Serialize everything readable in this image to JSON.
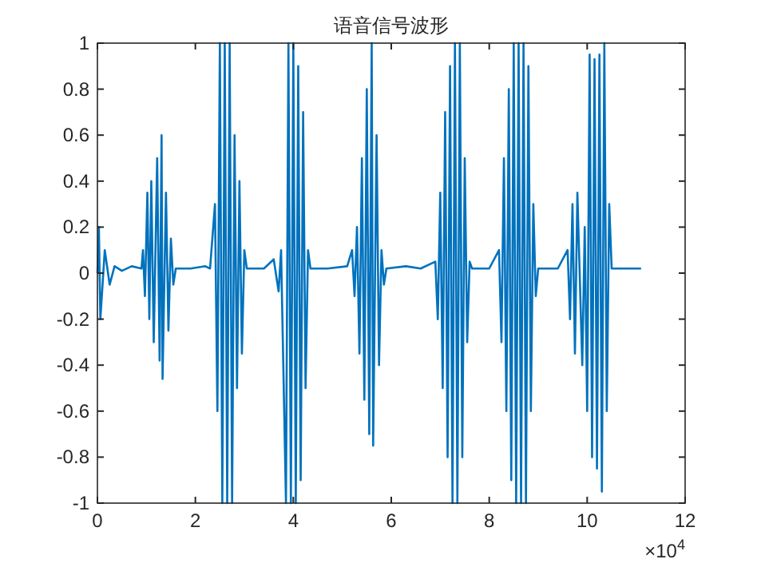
{
  "chart_data": {
    "type": "line",
    "title": "语音信号波形",
    "x": [
      0,
      0.03,
      0.06,
      0.15,
      0.25,
      0.35,
      0.5,
      0.7,
      0.9,
      0.93,
      0.97,
      1.02,
      1.06,
      1.1,
      1.15,
      1.22,
      1.27,
      1.31,
      1.33,
      1.4,
      1.45,
      1.5,
      1.55,
      1.6,
      1.9,
      2.2,
      2.3,
      2.4,
      2.45,
      2.5,
      2.55,
      2.6,
      2.65,
      2.7,
      2.75,
      2.8,
      2.85,
      2.9,
      2.95,
      3,
      3.05,
      3.4,
      3.6,
      3.7,
      3.75,
      3.85,
      3.9,
      3.95,
      4,
      4.05,
      4.1,
      4.15,
      4.2,
      4.25,
      4.3,
      4.35,
      4.7,
      5.1,
      5.2,
      5.25,
      5.3,
      5.35,
      5.4,
      5.45,
      5.5,
      5.55,
      5.6,
      5.63,
      5.7,
      5.75,
      5.8,
      5.85,
      5.9,
      6.3,
      6.6,
      6.9,
      6.95,
      7,
      7.05,
      7.1,
      7.15,
      7.2,
      7.25,
      7.3,
      7.35,
      7.4,
      7.45,
      7.5,
      7.55,
      7.6,
      7.65,
      8,
      8.2,
      8.25,
      8.3,
      8.35,
      8.4,
      8.45,
      8.5,
      8.55,
      8.6,
      8.65,
      8.7,
      8.75,
      8.8,
      8.85,
      8.9,
      8.95,
      9,
      9.4,
      9.6,
      9.65,
      9.7,
      9.75,
      9.8,
      9.9,
      9.95,
      10,
      10.05,
      10.1,
      10.15,
      10.2,
      10.25,
      10.3,
      10.35,
      10.4,
      10.45,
      10.5,
      10.8,
      11.1
    ],
    "series": [
      {
        "color": "#0072bd",
        "values": [
          0,
          0.2,
          -0.2,
          0.1,
          -0.05,
          0.03,
          0.01,
          0.03,
          0.02,
          0.1,
          -0.1,
          0.35,
          -0.2,
          0.4,
          -0.3,
          0.5,
          -0.38,
          0.6,
          -0.46,
          0.35,
          -0.25,
          0.15,
          -0.05,
          0.02,
          0.02,
          0.03,
          0.02,
          0.3,
          -0.6,
          1,
          -1,
          1,
          -1,
          1,
          -1,
          0.6,
          -0.5,
          0.4,
          -0.35,
          0.1,
          0.02,
          0.02,
          0.06,
          -0.08,
          0.1,
          -1,
          1,
          -1,
          1,
          -1,
          0.9,
          -0.9,
          0.7,
          -0.5,
          0.1,
          0.02,
          0.02,
          0.03,
          0.1,
          -0.1,
          0.2,
          -0.35,
          0.5,
          -0.55,
          0.8,
          -0.7,
          1,
          -0.75,
          0.6,
          -0.4,
          0.1,
          -0.05,
          0.02,
          0.03,
          0.02,
          0.05,
          -0.2,
          0.35,
          -0.5,
          0.7,
          -0.8,
          0.9,
          -1,
          1,
          -1,
          1,
          -0.8,
          0.5,
          -0.3,
          0.05,
          0.02,
          0.02,
          0.1,
          -0.3,
          0.5,
          -0.6,
          0.8,
          -0.9,
          1,
          -1,
          1,
          -1,
          1,
          -1,
          0.9,
          -0.6,
          0.3,
          -0.1,
          0.02,
          0.02,
          0.1,
          -0.2,
          0.3,
          -0.35,
          0.35,
          -0.4,
          0.2,
          -0.6,
          0.95,
          -0.8,
          0.93,
          -0.85,
          0.95,
          -0.95,
          1,
          -0.6,
          0.3,
          0.02,
          0.02,
          0.02
        ]
      }
    ],
    "xlim": [
      0,
      12
    ],
    "xticks": [
      0,
      2,
      4,
      6,
      8,
      10,
      12
    ],
    "ylim": [
      -1,
      1
    ],
    "yticks": [
      -1,
      -0.8,
      -0.6,
      -0.4,
      -0.2,
      0,
      0.2,
      0.4,
      0.6,
      0.8,
      1
    ],
    "annotations": [
      "×10$^{4}$"
    ],
    "grid": false,
    "marker": "none",
    "line_style": "solid"
  }
}
